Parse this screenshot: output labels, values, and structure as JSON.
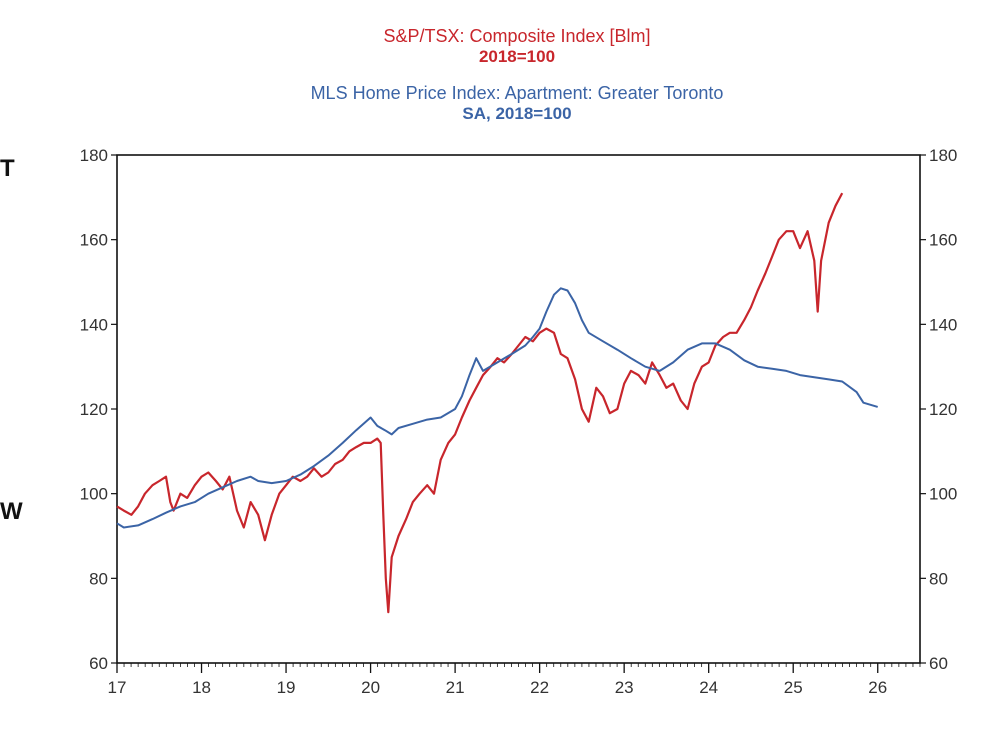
{
  "edge_glyphs": {
    "top": "T",
    "bottom": "W"
  },
  "chart_data": {
    "type": "line",
    "titles": [
      {
        "text": "S&P/TSX: Composite Index [Blm]",
        "sub": "2018=100",
        "color": "#c8262c"
      },
      {
        "text": "MLS Home Price Index: Apartment: Greater Toronto",
        "sub": "SA, 2018=100",
        "color": "#3b64a6"
      }
    ],
    "x_tick_labels": [
      "17",
      "18",
      "19",
      "20",
      "21",
      "22",
      "23",
      "24",
      "25",
      "26"
    ],
    "x_range": [
      2017.0,
      2026.5
    ],
    "y_range": [
      60,
      180
    ],
    "y_ticks": [
      60,
      80,
      100,
      120,
      140,
      160,
      180
    ],
    "grid": false,
    "series": [
      {
        "name": "S&P/TSX: Composite Index",
        "color": "#c8262c",
        "points": [
          [
            2017.0,
            97
          ],
          [
            2017.08,
            96
          ],
          [
            2017.17,
            95
          ],
          [
            2017.25,
            97
          ],
          [
            2017.33,
            100
          ],
          [
            2017.42,
            102
          ],
          [
            2017.5,
            103
          ],
          [
            2017.58,
            104
          ],
          [
            2017.63,
            98
          ],
          [
            2017.67,
            96
          ],
          [
            2017.75,
            100
          ],
          [
            2017.83,
            99
          ],
          [
            2017.92,
            102
          ],
          [
            2018.0,
            104
          ],
          [
            2018.08,
            105
          ],
          [
            2018.17,
            103
          ],
          [
            2018.25,
            101
          ],
          [
            2018.33,
            104
          ],
          [
            2018.42,
            96
          ],
          [
            2018.5,
            92
          ],
          [
            2018.58,
            98
          ],
          [
            2018.67,
            95
          ],
          [
            2018.75,
            89
          ],
          [
            2018.83,
            95
          ],
          [
            2018.92,
            100
          ],
          [
            2019.0,
            102
          ],
          [
            2019.08,
            104
          ],
          [
            2019.17,
            103
          ],
          [
            2019.25,
            104
          ],
          [
            2019.33,
            106
          ],
          [
            2019.42,
            104
          ],
          [
            2019.5,
            105
          ],
          [
            2019.58,
            107
          ],
          [
            2019.67,
            108
          ],
          [
            2019.75,
            110
          ],
          [
            2019.83,
            111
          ],
          [
            2019.92,
            112
          ],
          [
            2020.0,
            112
          ],
          [
            2020.08,
            113
          ],
          [
            2020.12,
            112
          ],
          [
            2020.15,
            95
          ],
          [
            2020.18,
            80
          ],
          [
            2020.21,
            72
          ],
          [
            2020.25,
            85
          ],
          [
            2020.33,
            90
          ],
          [
            2020.42,
            94
          ],
          [
            2020.5,
            98
          ],
          [
            2020.58,
            100
          ],
          [
            2020.67,
            102
          ],
          [
            2020.75,
            100
          ],
          [
            2020.83,
            108
          ],
          [
            2020.92,
            112
          ],
          [
            2021.0,
            114
          ],
          [
            2021.08,
            118
          ],
          [
            2021.17,
            122
          ],
          [
            2021.25,
            125
          ],
          [
            2021.33,
            128
          ],
          [
            2021.42,
            130
          ],
          [
            2021.5,
            132
          ],
          [
            2021.58,
            131
          ],
          [
            2021.67,
            133
          ],
          [
            2021.75,
            135
          ],
          [
            2021.83,
            137
          ],
          [
            2021.92,
            136
          ],
          [
            2022.0,
            138
          ],
          [
            2022.08,
            139
          ],
          [
            2022.17,
            138
          ],
          [
            2022.25,
            133
          ],
          [
            2022.33,
            132
          ],
          [
            2022.42,
            127
          ],
          [
            2022.5,
            120
          ],
          [
            2022.58,
            117
          ],
          [
            2022.67,
            125
          ],
          [
            2022.75,
            123
          ],
          [
            2022.83,
            119
          ],
          [
            2022.92,
            120
          ],
          [
            2023.0,
            126
          ],
          [
            2023.08,
            129
          ],
          [
            2023.17,
            128
          ],
          [
            2023.25,
            126
          ],
          [
            2023.33,
            131
          ],
          [
            2023.42,
            128
          ],
          [
            2023.5,
            125
          ],
          [
            2023.58,
            126
          ],
          [
            2023.67,
            122
          ],
          [
            2023.75,
            120
          ],
          [
            2023.83,
            126
          ],
          [
            2023.92,
            130
          ],
          [
            2024.0,
            131
          ],
          [
            2024.08,
            135
          ],
          [
            2024.17,
            137
          ],
          [
            2024.25,
            138
          ],
          [
            2024.33,
            138
          ],
          [
            2024.42,
            141
          ],
          [
            2024.5,
            144
          ],
          [
            2024.58,
            148
          ],
          [
            2024.67,
            152
          ],
          [
            2024.75,
            156
          ],
          [
            2024.83,
            160
          ],
          [
            2024.92,
            162
          ],
          [
            2025.0,
            162
          ],
          [
            2025.08,
            158
          ],
          [
            2025.17,
            162
          ],
          [
            2025.25,
            155
          ],
          [
            2025.29,
            143
          ],
          [
            2025.33,
            155
          ],
          [
            2025.42,
            164
          ],
          [
            2025.5,
            168
          ],
          [
            2025.58,
            171
          ]
        ]
      },
      {
        "name": "MLS Home Price Index: Apartment: Greater Toronto",
        "color": "#3b64a6",
        "points": [
          [
            2017.0,
            93
          ],
          [
            2017.08,
            92
          ],
          [
            2017.25,
            92.5
          ],
          [
            2017.42,
            94
          ],
          [
            2017.58,
            95.5
          ],
          [
            2017.75,
            97
          ],
          [
            2017.92,
            98
          ],
          [
            2018.08,
            100
          ],
          [
            2018.25,
            101.5
          ],
          [
            2018.42,
            103
          ],
          [
            2018.58,
            104
          ],
          [
            2018.67,
            103
          ],
          [
            2018.83,
            102.5
          ],
          [
            2019.0,
            103
          ],
          [
            2019.17,
            104.5
          ],
          [
            2019.33,
            106.5
          ],
          [
            2019.5,
            109
          ],
          [
            2019.67,
            112
          ],
          [
            2019.83,
            115
          ],
          [
            2020.0,
            118
          ],
          [
            2020.08,
            116
          ],
          [
            2020.17,
            115
          ],
          [
            2020.25,
            114
          ],
          [
            2020.33,
            115.5
          ],
          [
            2020.5,
            116.5
          ],
          [
            2020.67,
            117.5
          ],
          [
            2020.83,
            118
          ],
          [
            2021.0,
            120
          ],
          [
            2021.08,
            123
          ],
          [
            2021.17,
            128
          ],
          [
            2021.25,
            132
          ],
          [
            2021.33,
            129
          ],
          [
            2021.5,
            131
          ],
          [
            2021.67,
            133
          ],
          [
            2021.83,
            135
          ],
          [
            2021.92,
            137
          ],
          [
            2022.0,
            139
          ],
          [
            2022.08,
            143
          ],
          [
            2022.17,
            147
          ],
          [
            2022.25,
            148.5
          ],
          [
            2022.33,
            148
          ],
          [
            2022.42,
            145
          ],
          [
            2022.5,
            141
          ],
          [
            2022.58,
            138
          ],
          [
            2022.75,
            136
          ],
          [
            2022.92,
            134
          ],
          [
            2023.08,
            132
          ],
          [
            2023.25,
            130
          ],
          [
            2023.42,
            129
          ],
          [
            2023.58,
            131
          ],
          [
            2023.75,
            134
          ],
          [
            2023.92,
            135.5
          ],
          [
            2024.08,
            135.5
          ],
          [
            2024.25,
            134
          ],
          [
            2024.42,
            131.5
          ],
          [
            2024.58,
            130
          ],
          [
            2024.75,
            129.5
          ],
          [
            2024.92,
            129
          ],
          [
            2025.08,
            128
          ],
          [
            2025.25,
            127.5
          ],
          [
            2025.42,
            127
          ],
          [
            2025.58,
            126.5
          ],
          [
            2025.75,
            124
          ],
          [
            2025.83,
            121.5
          ],
          [
            2026.0,
            120.5
          ]
        ]
      }
    ]
  }
}
